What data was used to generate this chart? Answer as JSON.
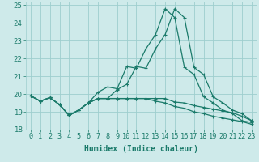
{
  "xlabel": "Humidex (Indice chaleur)",
  "ylabel": "",
  "bg_color": "#ceeaea",
  "grid_color": "#9ecece",
  "line_color": "#1a7a6a",
  "x_values": [
    0,
    1,
    2,
    3,
    4,
    5,
    6,
    7,
    8,
    9,
    10,
    11,
    12,
    13,
    14,
    15,
    16,
    17,
    18,
    19,
    20,
    21,
    22,
    23
  ],
  "series": [
    [
      19.9,
      19.6,
      19.8,
      19.4,
      18.8,
      19.1,
      19.5,
      20.1,
      20.4,
      20.3,
      21.55,
      21.45,
      22.55,
      23.35,
      24.8,
      24.3,
      21.5,
      21.1,
      19.85,
      19.5,
      19.1,
      18.9,
      18.5,
      18.4
    ],
    [
      19.9,
      19.6,
      19.8,
      19.4,
      18.8,
      19.1,
      19.5,
      19.75,
      19.75,
      20.25,
      20.55,
      21.55,
      21.45,
      22.55,
      23.35,
      24.8,
      24.3,
      21.5,
      21.1,
      19.85,
      19.5,
      19.1,
      18.9,
      18.5
    ],
    [
      19.9,
      19.6,
      19.8,
      19.4,
      18.8,
      19.1,
      19.5,
      19.75,
      19.75,
      19.75,
      19.75,
      19.75,
      19.75,
      19.75,
      19.75,
      19.55,
      19.5,
      19.35,
      19.25,
      19.15,
      19.05,
      18.95,
      18.75,
      18.5
    ],
    [
      19.9,
      19.6,
      19.8,
      19.4,
      18.8,
      19.1,
      19.5,
      19.75,
      19.75,
      19.75,
      19.75,
      19.75,
      19.75,
      19.6,
      19.5,
      19.3,
      19.2,
      19.0,
      18.9,
      18.75,
      18.65,
      18.55,
      18.45,
      18.3
    ]
  ],
  "ylim": [
    18,
    25.2
  ],
  "yticks": [
    18,
    19,
    20,
    21,
    22,
    23,
    24,
    25
  ],
  "xlim": [
    -0.5,
    23.5
  ],
  "title_fontsize": 7,
  "axis_fontsize": 7,
  "tick_fontsize": 6.2
}
